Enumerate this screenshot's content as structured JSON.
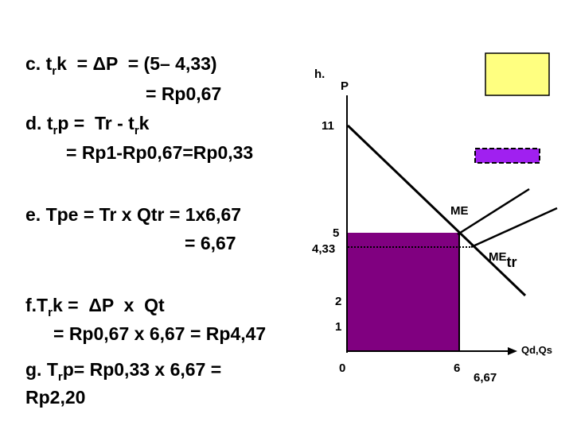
{
  "text": {
    "c": [
      "c. t",
      "r",
      "k  = ΔP  = (5– 4,33)"
    ],
    "c2": "= Rp0,67",
    "d": [
      "d. t",
      "r",
      "p =  Tr - t",
      "r",
      "k"
    ],
    "d2": "= Rp1-Rp0,67=Rp0,33",
    "e": "e. Tpe = Tr x Qtr = 1x6,67",
    "e2": "= 6,67",
    "f": [
      "f.T",
      "r",
      "k =  ΔP  x  Qt"
    ],
    "f2": "= Rp0,67 x 6,67 = Rp4,47",
    "g": [
      "g. T",
      "r",
      "p= Rp0,33 x 6,67 ="
    ],
    "g2": "Rp2,20"
  },
  "diagram": {
    "h": "h.",
    "y_axis": "P",
    "p11": "11",
    "p5": "5",
    "p433": "4,33",
    "p2": "2",
    "p1": "1",
    "origin": "0",
    "q6": "6",
    "q667": "6,67",
    "x_axis": "Qd,Qs",
    "me": "ME",
    "me_tr": [
      "ME",
      "tr"
    ]
  }
}
